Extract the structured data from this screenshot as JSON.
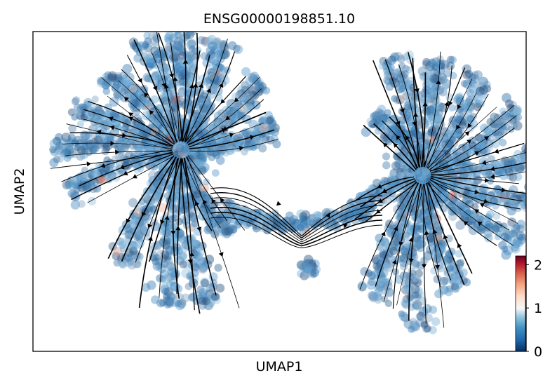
{
  "chart_data": {
    "type": "scatter",
    "title": "ENSG00000198851.10",
    "xlabel": "UMAP1",
    "ylabel": "UMAP2",
    "grid": false,
    "overlay": "velocity-streamlines",
    "colormap": "RdBu_r",
    "colorbar": {
      "ticks": [
        "0",
        "1",
        "2"
      ],
      "range": [
        0,
        2.2
      ],
      "placement": "bottom-right"
    },
    "clusters": [
      {
        "name": "",
        "center": [
          0.3,
          0.63
        ]
      },
      {
        "name": "",
        "center": [
          0.79,
          0.55
        ]
      },
      {
        "name": "",
        "center": [
          0.56,
          0.35
        ]
      }
    ],
    "colors": {
      "low": "#053061",
      "mid": "#f7f7f7",
      "high": "#67001f",
      "dominant": "#4b8ec1",
      "streamline": "#000000"
    }
  }
}
